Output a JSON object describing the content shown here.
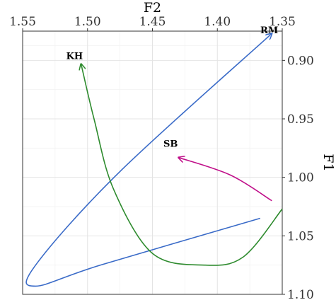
{
  "chart_data": {
    "type": "line",
    "xlabel": "F2",
    "ylabel": "F1",
    "x_axis_position": "top",
    "y_axis_position": "right",
    "x_reversed": true,
    "y_reversed": true,
    "xlim": [
      1.55,
      1.35
    ],
    "ylim": [
      0.875,
      1.1
    ],
    "x_ticks": [
      {
        "value": 1.55,
        "label": "1.55"
      },
      {
        "value": 1.5,
        "label": "1.50"
      },
      {
        "value": 1.45,
        "label": "1.45"
      },
      {
        "value": 1.4,
        "label": "1.40"
      },
      {
        "value": 1.35,
        "label": "1.35"
      }
    ],
    "y_ticks": [
      {
        "value": 0.9,
        "label": "0.90"
      },
      {
        "value": 0.95,
        "label": "0.95"
      },
      {
        "value": 1.0,
        "label": "1.00"
      },
      {
        "value": 1.05,
        "label": "1.05"
      },
      {
        "value": 1.1,
        "label": "1.10"
      }
    ],
    "grid": true,
    "series": [
      {
        "name": "RM",
        "color": "#3a6bc8",
        "points": [
          [
            1.367,
            1.035
          ],
          [
            1.49,
            1.075
          ],
          [
            1.54,
            1.093
          ],
          [
            1.54,
            1.075
          ],
          [
            1.475,
            0.995
          ],
          [
            1.358,
            0.877
          ]
        ]
      },
      {
        "name": "KH",
        "color": "#2e8b2e",
        "points": [
          [
            1.35,
            1.027
          ],
          [
            1.38,
            1.068
          ],
          [
            1.41,
            1.075
          ],
          [
            1.45,
            1.065
          ],
          [
            1.48,
            1.01
          ],
          [
            1.495,
            0.95
          ],
          [
            1.505,
            0.903
          ]
        ]
      },
      {
        "name": "SB",
        "color": "#c0108a",
        "points": [
          [
            1.358,
            1.02
          ],
          [
            1.39,
            0.998
          ],
          [
            1.43,
            0.983
          ]
        ]
      }
    ],
    "point_labels": [
      {
        "text": "RM",
        "x": 1.36,
        "y": 0.878
      },
      {
        "text": "KH",
        "x": 1.51,
        "y": 0.9
      },
      {
        "text": "SB",
        "x": 1.436,
        "y": 0.975
      }
    ]
  }
}
